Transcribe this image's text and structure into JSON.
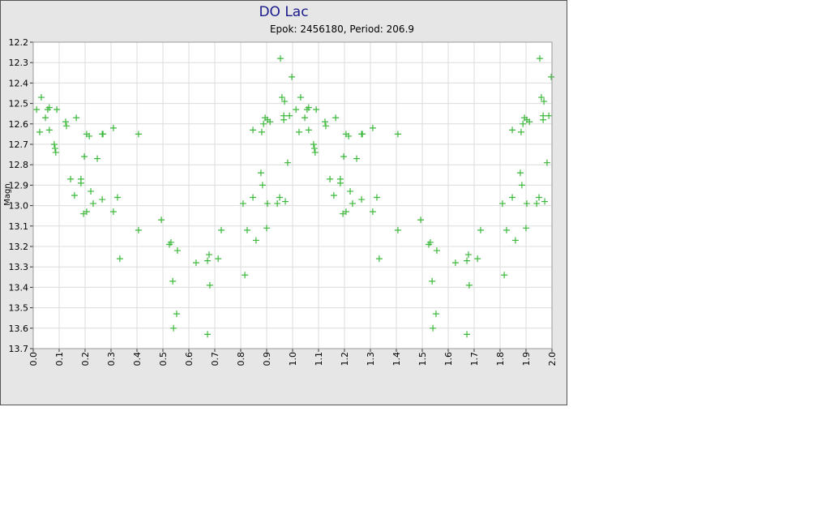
{
  "chart_data": {
    "type": "scatter",
    "title": "DO Lac",
    "subtitle": "Epok: 2456180, Period: 206.9",
    "y_label": "Magn",
    "color": "#3cb83c",
    "grid": true,
    "y_inverted": true,
    "xlim": [
      0,
      2
    ],
    "ylim": [
      12.2,
      13.7
    ],
    "xticks": [
      {
        "value": 0,
        "label": "0.0"
      },
      0.1,
      0.2,
      0.3,
      0.4,
      0.5,
      0.6,
      0.7,
      0.8,
      0.9,
      {
        "value": 1,
        "label": "1.0"
      },
      1.1,
      1.2,
      1.3,
      1.4,
      1.5,
      1.6,
      1.7,
      1.8,
      1.9,
      {
        "value": 2,
        "label": "2.0"
      }
    ],
    "yticks": [
      12.2,
      12.3,
      12.4,
      12.5,
      12.6,
      12.7,
      12.8,
      12.9,
      {
        "value": 13,
        "label": "13.0"
      },
      13.1,
      13.2,
      13.3,
      13.4,
      13.5,
      13.6,
      13.7
    ],
    "x": [
      0.013,
      0.025,
      0.031,
      0.047,
      0.056,
      0.062,
      0.062,
      0.081,
      0.084,
      0.087,
      0.091,
      0.125,
      0.128,
      0.144,
      0.159,
      0.166,
      0.184,
      0.184,
      0.194,
      0.197,
      0.206,
      0.206,
      0.216,
      0.222,
      0.231,
      0.247,
      0.266,
      0.269,
      0.266,
      0.309,
      0.309,
      0.325,
      0.334,
      0.406,
      0.406,
      0.494,
      0.525,
      0.531,
      0.538,
      0.541,
      0.553,
      0.556,
      0.628,
      0.672,
      0.678,
      0.681,
      0.672,
      0.713,
      0.725,
      0.809,
      0.816,
      0.825,
      0.847,
      0.847,
      0.859,
      0.878,
      0.881,
      0.884,
      0.888,
      0.894,
      0.9,
      0.903,
      0.903,
      0.913,
      0.941,
      0.95,
      0.953,
      0.959,
      0.966,
      0.966,
      0.969,
      0.972,
      0.981,
      0.988,
      0.997,
      1.013,
      1.025,
      1.031,
      1.047,
      1.056,
      1.062,
      1.062,
      1.081,
      1.084,
      1.087,
      1.091,
      1.125,
      1.128,
      1.144,
      1.159,
      1.166,
      1.184,
      1.184,
      1.194,
      1.197,
      1.206,
      1.206,
      1.216,
      1.222,
      1.231,
      1.247,
      1.266,
      1.269,
      1.266,
      1.309,
      1.309,
      1.325,
      1.334,
      1.406,
      1.406,
      1.494,
      1.525,
      1.531,
      1.538,
      1.541,
      1.553,
      1.556,
      1.628,
      1.672,
      1.678,
      1.681,
      1.672,
      1.713,
      1.725,
      1.809,
      1.816,
      1.825,
      1.847,
      1.847,
      1.859,
      1.878,
      1.881,
      1.884,
      1.888,
      1.894,
      1.9,
      1.903,
      1.903,
      1.913,
      1.941,
      1.95,
      1.953,
      1.959,
      1.966,
      1.966,
      1.969,
      1.972,
      1.981,
      1.988,
      1.997
    ],
    "y": [
      12.53,
      12.64,
      12.47,
      12.57,
      12.53,
      12.52,
      12.63,
      12.7,
      12.72,
      12.74,
      12.53,
      12.59,
      12.61,
      12.87,
      12.95,
      12.57,
      12.87,
      12.89,
      13.04,
      12.76,
      12.65,
      13.03,
      12.66,
      12.93,
      12.99,
      12.77,
      12.65,
      12.65,
      12.97,
      12.62,
      13.03,
      12.96,
      13.26,
      12.65,
      13.12,
      13.07,
      13.19,
      13.18,
      13.37,
      13.6,
      13.53,
      13.22,
      13.28,
      13.27,
      13.24,
      13.39,
      13.63,
      13.26,
      13.12,
      12.99,
      13.34,
      13.12,
      12.63,
      12.96,
      13.17,
      12.84,
      12.64,
      12.9,
      12.6,
      12.57,
      13.11,
      12.58,
      12.99,
      12.59,
      12.99,
      12.96,
      12.28,
      12.47,
      12.58,
      12.56,
      12.49,
      12.98,
      12.79,
      12.56,
      12.37,
      12.53,
      12.64,
      12.47,
      12.57,
      12.53,
      12.52,
      12.63,
      12.7,
      12.72,
      12.74,
      12.53,
      12.59,
      12.61,
      12.87,
      12.95,
      12.57,
      12.87,
      12.89,
      13.04,
      12.76,
      12.65,
      13.03,
      12.66,
      12.93,
      12.99,
      12.77,
      12.65,
      12.65,
      12.97,
      12.62,
      13.03,
      12.96,
      13.26,
      12.65,
      13.12,
      13.07,
      13.19,
      13.18,
      13.37,
      13.6,
      13.53,
      13.22,
      13.28,
      13.27,
      13.24,
      13.39,
      13.63,
      13.26,
      13.12,
      12.99,
      13.34,
      13.12,
      12.63,
      12.96,
      13.17,
      12.84,
      12.64,
      12.9,
      12.6,
      12.57,
      13.11,
      12.58,
      12.99,
      12.59,
      12.99,
      12.96,
      12.28,
      12.47,
      12.58,
      12.56,
      12.49,
      12.98,
      12.79,
      12.56,
      12.37
    ]
  }
}
